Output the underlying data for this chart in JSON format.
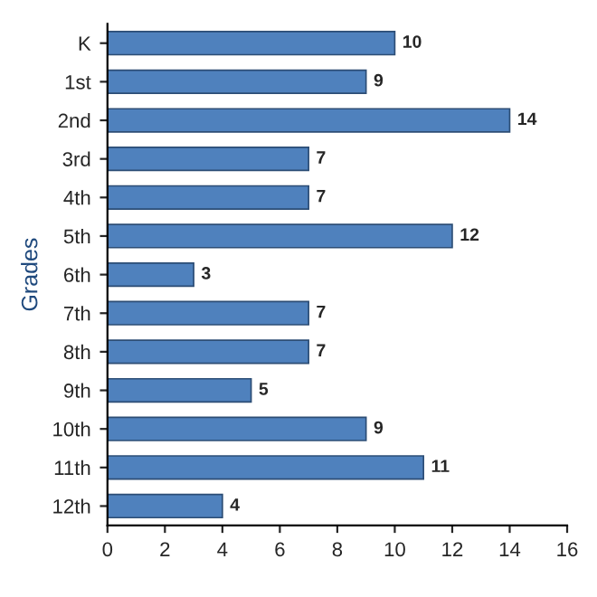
{
  "chart_data": {
    "type": "bar",
    "orientation": "horizontal",
    "ylabel": "Grades",
    "categories": [
      "K",
      "1st",
      "2nd",
      "3rd",
      "4th",
      "5th",
      "6th",
      "7th",
      "8th",
      "9th",
      "10th",
      "11th",
      "12th"
    ],
    "values": [
      10,
      9,
      14,
      7,
      7,
      12,
      3,
      7,
      7,
      5,
      9,
      11,
      4
    ],
    "color": "#4f81bd",
    "xlim": [
      0,
      16
    ],
    "xticks": [
      0,
      2,
      4,
      6,
      8,
      10,
      12,
      14,
      16
    ],
    "data_labels": true,
    "grid": false
  }
}
